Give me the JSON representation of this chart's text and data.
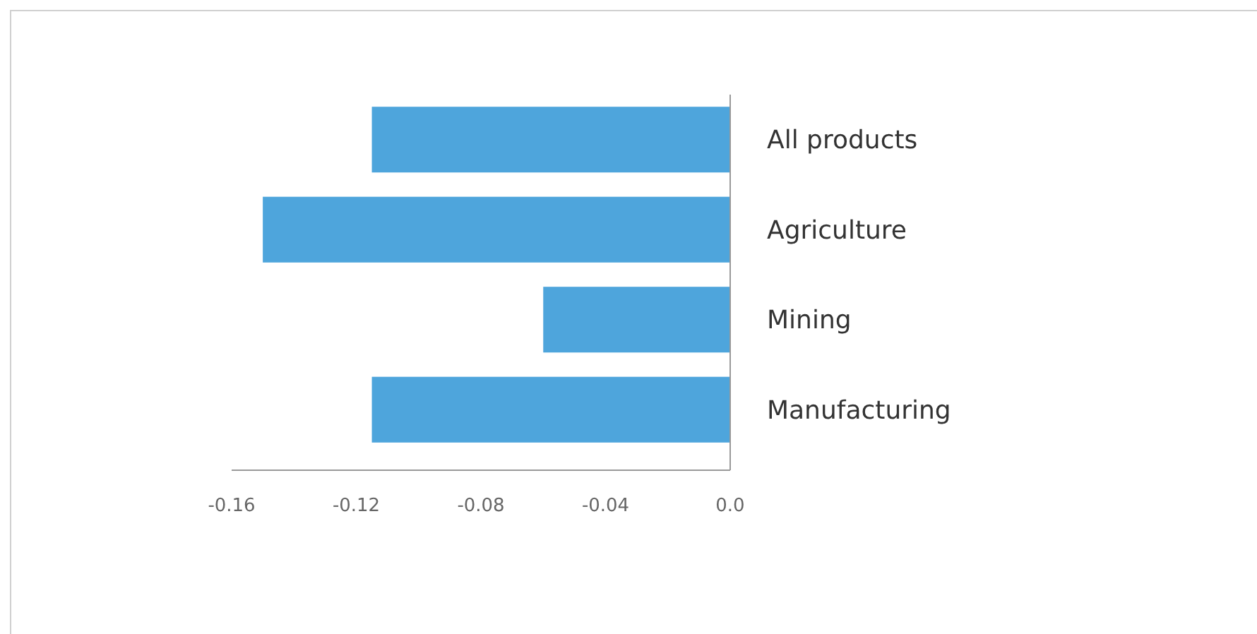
{
  "chart_data": {
    "type": "bar",
    "orientation": "horizontal",
    "categories": [
      "All products",
      "Agriculture",
      "Mining",
      "Manufacturing"
    ],
    "values": [
      -0.115,
      -0.15,
      -0.06,
      -0.115
    ],
    "color": "#4ea5dc",
    "xlim": [
      -0.16,
      0
    ],
    "xticks": [
      -0.16,
      -0.12,
      -0.08,
      -0.04,
      {
        "value": 0,
        "label": "0.0"
      }
    ],
    "grid": false
  }
}
